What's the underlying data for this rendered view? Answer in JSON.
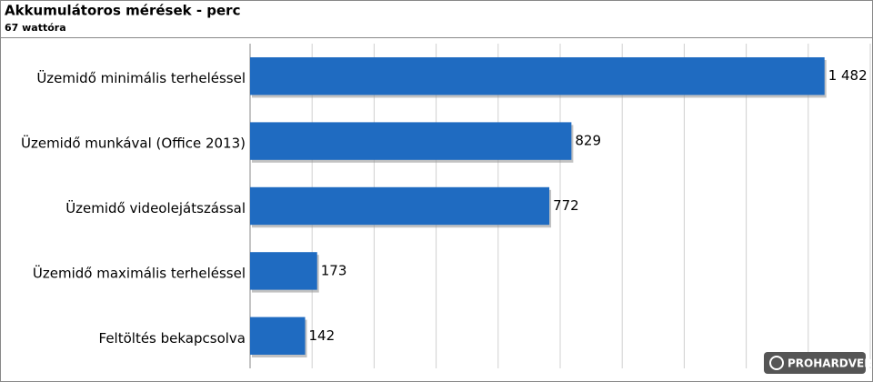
{
  "chart_data": {
    "type": "bar",
    "orientation": "horizontal",
    "title": "Akkumulátoros mérések - perc",
    "subtitle": "67 wattóra",
    "categories": [
      "Üzemidő minimális terheléssel",
      "Üzemidő munkával (Office 2013)",
      "Üzemidő videolejátszással",
      "Üzemidő maximális terheléssel",
      "Feltöltés bekapcsolva"
    ],
    "values": [
      1482,
      829,
      772,
      173,
      142
    ],
    "value_labels": [
      "1 482",
      "829",
      "772",
      "173",
      "142"
    ],
    "color": "#1f6bc1",
    "xlim": [
      0,
      1600
    ],
    "xticks": [
      0,
      160,
      320,
      480,
      640,
      800,
      960,
      1120,
      1280,
      1440,
      1600
    ],
    "grid": true,
    "watermark": "PROHARDVER!"
  }
}
